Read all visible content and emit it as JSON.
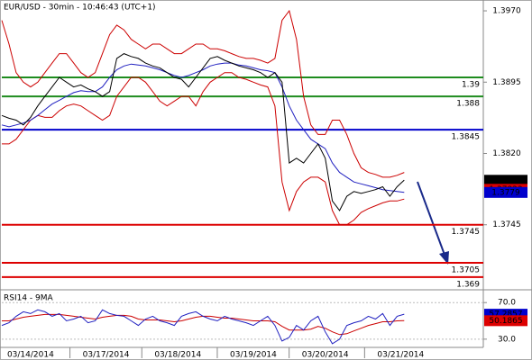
{
  "chart_data": [
    {
      "type": "line",
      "title": "EUR/USD - 30min - 10:46:43 (UTC+1)",
      "x": [
        0,
        1,
        2,
        3,
        4,
        5,
        6,
        7,
        8,
        9,
        10,
        11,
        12,
        13,
        14,
        15,
        16,
        17,
        18,
        19,
        20,
        21,
        22,
        23,
        24,
        25,
        26,
        27,
        28,
        29,
        30,
        31,
        32,
        33,
        34,
        35,
        36,
        37,
        38,
        39,
        40,
        41,
        42,
        43,
        44,
        45,
        46,
        47,
        48,
        49,
        50,
        51,
        52,
        53,
        54,
        55,
        56
      ],
      "xlim": [
        0,
        67
      ],
      "ylim": [
        1.36785,
        1.39814
      ],
      "yticks": [
        {
          "value": 1.397,
          "label": "1.3970"
        },
        1.3895,
        {
          "value": 1.382,
          "label": "1.3820"
        },
        1.3745
      ],
      "series": [
        {
          "color": "#cc0000",
          "values": [
            1.396,
            1.3935,
            1.3905,
            1.3895,
            1.389,
            1.3895,
            1.3905,
            1.3915,
            1.3925,
            1.3925,
            1.3915,
            1.3905,
            1.39,
            1.3905,
            1.3925,
            1.3945,
            1.3955,
            1.395,
            1.394,
            1.3935,
            1.393,
            1.3935,
            1.3935,
            1.393,
            1.3925,
            1.3925,
            1.393,
            1.3935,
            1.3935,
            1.393,
            1.393,
            1.3928,
            1.3925,
            1.3922,
            1.392,
            1.392,
            1.3918,
            1.3915,
            1.392,
            1.396,
            1.397,
            1.394,
            1.388,
            1.385,
            1.384,
            1.384,
            1.3855,
            1.3855,
            1.384,
            1.382,
            1.3805,
            1.38,
            1.3798,
            1.3795,
            1.3795,
            1.3797,
            1.38
          ]
        },
        {
          "color": "#cc0000",
          "values": [
            1.383,
            1.383,
            1.3835,
            1.3845,
            1.3855,
            1.386,
            1.3858,
            1.3858,
            1.3865,
            1.387,
            1.3872,
            1.387,
            1.3865,
            1.386,
            1.3855,
            1.386,
            1.388,
            1.389,
            1.39,
            1.39,
            1.3895,
            1.3885,
            1.3875,
            1.387,
            1.3875,
            1.388,
            1.388,
            1.387,
            1.3885,
            1.3895,
            1.39,
            1.3905,
            1.3905,
            1.39,
            1.3898,
            1.3895,
            1.3892,
            1.389,
            1.387,
            1.379,
            1.376,
            1.378,
            1.379,
            1.3795,
            1.3795,
            1.379,
            1.376,
            1.3745,
            1.3745,
            1.375,
            1.3758,
            1.3762,
            1.3765,
            1.3768,
            1.377,
            1.377,
            1.3772
          ]
        },
        {
          "color": "#2020c0",
          "values": [
            1.385,
            1.3848,
            1.385,
            1.3852,
            1.3855,
            1.386,
            1.3866,
            1.3872,
            1.3876,
            1.388,
            1.3884,
            1.3886,
            1.3885,
            1.3885,
            1.389,
            1.39,
            1.3908,
            1.3912,
            1.3914,
            1.3913,
            1.3912,
            1.391,
            1.3908,
            1.3905,
            1.3902,
            1.39,
            1.3902,
            1.3905,
            1.3908,
            1.3912,
            1.3914,
            1.3915,
            1.3915,
            1.3913,
            1.3912,
            1.391,
            1.3908,
            1.3907,
            1.3905,
            1.389,
            1.387,
            1.3855,
            1.3845,
            1.3835,
            1.383,
            1.3825,
            1.381,
            1.38,
            1.3795,
            1.379,
            1.3788,
            1.3786,
            1.3784,
            1.3782,
            1.3781,
            1.378,
            1.3779
          ]
        },
        {
          "color": "#000000",
          "values": [
            1.386,
            1.3857,
            1.3855,
            1.385,
            1.3858,
            1.387,
            1.388,
            1.389,
            1.39,
            1.3895,
            1.389,
            1.3892,
            1.3888,
            1.3885,
            1.388,
            1.3885,
            1.392,
            1.3925,
            1.3922,
            1.392,
            1.3915,
            1.3912,
            1.391,
            1.3905,
            1.39,
            1.3898,
            1.389,
            1.39,
            1.391,
            1.392,
            1.3922,
            1.3918,
            1.3915,
            1.3912,
            1.391,
            1.3908,
            1.3905,
            1.39,
            1.3905,
            1.3895,
            1.381,
            1.3815,
            1.381,
            1.382,
            1.383,
            1.3815,
            1.377,
            1.376,
            1.3775,
            1.378,
            1.3778,
            1.378,
            1.3782,
            1.3785,
            1.3775,
            1.3785,
            1.3792
          ]
        }
      ],
      "levels": [
        {
          "value": 1.39,
          "color": "#1e8c1e"
        },
        {
          "value": 1.388,
          "color": "#1e8c1e"
        },
        {
          "value": 1.3845,
          "color": "#0000cc"
        },
        {
          "value": 1.3745,
          "color": "#dd0000"
        },
        {
          "value": 1.3705,
          "color": "#dd0000"
        },
        {
          "value": 1.369,
          "color": "#dd0000"
        }
      ],
      "price_tags": [
        {
          "value": 1.37918,
          "color": "#000000"
        },
        {
          "value": 1.37823,
          "color": "#dd0000"
        },
        {
          "value": 1.3779,
          "color": "#0000cc"
        }
      ]
    },
    {
      "type": "line",
      "title": "RSI14 - 9MA",
      "x": [
        0,
        1,
        2,
        3,
        4,
        5,
        6,
        7,
        8,
        9,
        10,
        11,
        12,
        13,
        14,
        15,
        16,
        17,
        18,
        19,
        20,
        21,
        22,
        23,
        24,
        25,
        26,
        27,
        28,
        29,
        30,
        31,
        32,
        33,
        34,
        35,
        36,
        37,
        38,
        39,
        40,
        41,
        42,
        43,
        44,
        45,
        46,
        47,
        48,
        49,
        50,
        51,
        52,
        53,
        54,
        55,
        56
      ],
      "xlim": [
        0,
        67
      ],
      "xticks": [
        {
          "value": 4,
          "label": "03/14/2014"
        },
        {
          "value": 14.5,
          "label": "03/17/2014"
        },
        {
          "value": 24.5,
          "label": "03/18/2014"
        },
        {
          "value": 35,
          "label": "03/19/2014"
        },
        {
          "value": 45,
          "label": "03/20/2014"
        },
        {
          "value": 55.5,
          "label": "03/21/2014"
        }
      ],
      "ylim": [
        21,
        82
      ],
      "yticks": [
        {
          "value": 70,
          "label": "70.0"
        },
        {
          "value": 30,
          "label": "30.0"
        }
      ],
      "series": [
        {
          "color": "#cc0000",
          "values": [
            50,
            50,
            52,
            54,
            55,
            56,
            57,
            57,
            57,
            56,
            55,
            54,
            53,
            52,
            54,
            55,
            56,
            56,
            55,
            52,
            51,
            51,
            51,
            50,
            49,
            50,
            52,
            54,
            55,
            55,
            54,
            53,
            53,
            52,
            51,
            50,
            50,
            50,
            49,
            44,
            40,
            40,
            40,
            41,
            44,
            42,
            38,
            35,
            36,
            39,
            42,
            45,
            47,
            49,
            49,
            50,
            50.1865
          ]
        },
        {
          "color": "#2020c0",
          "values": [
            45,
            48,
            55,
            60,
            58,
            62,
            60,
            55,
            58,
            50,
            52,
            55,
            48,
            50,
            62,
            58,
            56,
            55,
            50,
            45,
            52,
            55,
            50,
            48,
            45,
            55,
            58,
            60,
            55,
            52,
            50,
            55,
            52,
            50,
            48,
            45,
            50,
            55,
            45,
            28,
            32,
            45,
            40,
            50,
            55,
            38,
            25,
            30,
            45,
            48,
            50,
            55,
            52,
            58,
            45,
            55,
            57.2857
          ]
        }
      ],
      "price_tags": [
        {
          "value": 57.2857,
          "color": "#0000cc"
        },
        {
          "value": 50.1865,
          "color": "#dd0000"
        }
      ]
    }
  ]
}
